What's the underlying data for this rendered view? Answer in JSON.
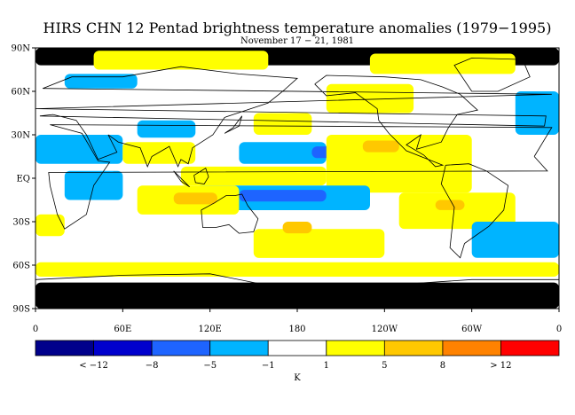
{
  "chart_data": {
    "type": "heatmap",
    "title": "HIRS CHN 12 Pentad brightness temperature anomalies (1979−1995)",
    "subtitle": "November 17 − 21, 1981",
    "x_ticks": [
      "0",
      "60E",
      "120E",
      "180",
      "120W",
      "60W",
      "0"
    ],
    "x_tick_lon": [
      0,
      60,
      120,
      180,
      240,
      300,
      360
    ],
    "y_ticks": [
      "90N",
      "60N",
      "30N",
      "EQ",
      "30S",
      "60S",
      "90S"
    ],
    "y_tick_lat": [
      90,
      60,
      30,
      0,
      -30,
      -60,
      -90
    ],
    "xlim": [
      0,
      360
    ],
    "ylim": [
      -90,
      90
    ],
    "colorbar": {
      "unit_label": "K",
      "boundary_labels": [
        "< −12",
        "−8",
        "−5",
        "−1",
        "1",
        "5",
        "8",
        "> 12"
      ],
      "colors": [
        "#00008b",
        "#0000cd",
        "#1e64ff",
        "#00b4ff",
        "#ffffff",
        "#ffff00",
        "#ffc800",
        "#ff8200",
        "#ff0000"
      ],
      "bins": [
        "< -12",
        "-12 to -8",
        "-8 to -5",
        "-5 to -1",
        "-1 to 1",
        "1 to 5",
        "5 to 8",
        "8 to 12",
        "> 12"
      ]
    },
    "missing_color": "#000000",
    "anomaly_regions": [
      {
        "lon": [
          0,
          360
        ],
        "lat": [
          78,
          90
        ],
        "bin": "missing"
      },
      {
        "lon": [
          0,
          360
        ],
        "lat": [
          -90,
          -72
        ],
        "bin": "missing"
      },
      {
        "lon": [
          40,
          160
        ],
        "lat": [
          75,
          88
        ],
        "bin": "1 to 5"
      },
      {
        "lon": [
          230,
          330
        ],
        "lat": [
          72,
          86
        ],
        "bin": "1 to 5"
      },
      {
        "lon": [
          20,
          70
        ],
        "lat": [
          62,
          72
        ],
        "bin": "-5 to -1"
      },
      {
        "lon": [
          200,
          260
        ],
        "lat": [
          45,
          65
        ],
        "bin": "1 to 5"
      },
      {
        "lon": [
          150,
          190
        ],
        "lat": [
          30,
          45
        ],
        "bin": "1 to 5"
      },
      {
        "lon": [
          70,
          110
        ],
        "lat": [
          28,
          40
        ],
        "bin": "-5 to -1"
      },
      {
        "lon": [
          0,
          60
        ],
        "lat": [
          10,
          30
        ],
        "bin": "-5 to -1"
      },
      {
        "lon": [
          60,
          110
        ],
        "lat": [
          10,
          25
        ],
        "bin": "1 to 5"
      },
      {
        "lon": [
          140,
          200
        ],
        "lat": [
          10,
          25
        ],
        "bin": "-5 to -1"
      },
      {
        "lon": [
          190,
          215
        ],
        "lat": [
          14,
          22
        ],
        "bin": "-8 to -5"
      },
      {
        "lon": [
          200,
          300
        ],
        "lat": [
          -10,
          30
        ],
        "bin": "1 to 5"
      },
      {
        "lon": [
          225,
          250
        ],
        "lat": [
          18,
          26
        ],
        "bin": "5 to 8"
      },
      {
        "lon": [
          100,
          200
        ],
        "lat": [
          -5,
          8
        ],
        "bin": "1 to 5"
      },
      {
        "lon": [
          110,
          230
        ],
        "lat": [
          -22,
          -5
        ],
        "bin": "-5 to -1"
      },
      {
        "lon": [
          140,
          200
        ],
        "lat": [
          -16,
          -8
        ],
        "bin": "-8 to -5"
      },
      {
        "lon": [
          70,
          140
        ],
        "lat": [
          -25,
          -5
        ],
        "bin": "1 to 5"
      },
      {
        "lon": [
          95,
          125
        ],
        "lat": [
          -18,
          -10
        ],
        "bin": "5 to 8"
      },
      {
        "lon": [
          250,
          330
        ],
        "lat": [
          -35,
          -10
        ],
        "bin": "1 to 5"
      },
      {
        "lon": [
          275,
          295
        ],
        "lat": [
          -22,
          -15
        ],
        "bin": "5 to 8"
      },
      {
        "lon": [
          20,
          60
        ],
        "lat": [
          -15,
          5
        ],
        "bin": "-5 to -1"
      },
      {
        "lon": [
          0,
          20
        ],
        "lat": [
          -40,
          -25
        ],
        "bin": "1 to 5"
      },
      {
        "lon": [
          150,
          240
        ],
        "lat": [
          -55,
          -35
        ],
        "bin": "1 to 5"
      },
      {
        "lon": [
          170,
          190
        ],
        "lat": [
          -38,
          -30
        ],
        "bin": "5 to 8"
      },
      {
        "lon": [
          300,
          360
        ],
        "lat": [
          -55,
          -30
        ],
        "bin": "-5 to -1"
      },
      {
        "lon": [
          330,
          360
        ],
        "lat": [
          30,
          60
        ],
        "bin": "-5 to -1"
      },
      {
        "lon": [
          0,
          360
        ],
        "lat": [
          -68,
          -58
        ],
        "bin": "1 to 5"
      }
    ]
  }
}
